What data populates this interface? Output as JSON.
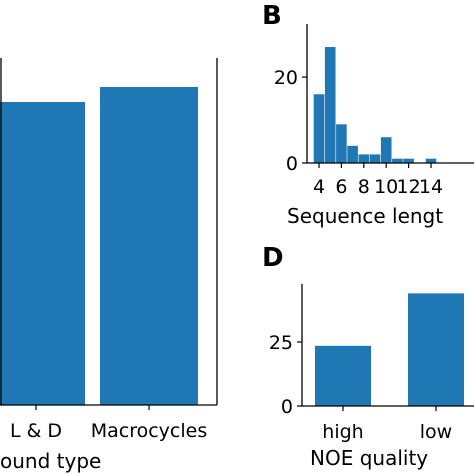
{
  "chart_data": [
    {
      "panel": "",
      "type": "bar",
      "categories": [
        "L & D",
        "Macrocycles"
      ],
      "values": [
        303,
        318
      ],
      "xlabel": "ound type",
      "ylabel": "",
      "color": "#1f77b4"
    },
    {
      "panel": "B",
      "type": "bar",
      "x": [
        4,
        5,
        6,
        7,
        8,
        9,
        10,
        11,
        12,
        13,
        14
      ],
      "values": [
        16,
        27,
        9,
        4,
        2,
        2,
        6,
        1,
        1,
        0,
        1
      ],
      "xticks": [
        "4",
        "6",
        "8",
        "10",
        "12",
        "14"
      ],
      "yticks": [
        "0",
        "20"
      ],
      "ylim": [
        0,
        28.5
      ],
      "xlabel": "Sequence lengt",
      "ylabel": "",
      "color": "#1f77b4"
    },
    {
      "panel": "D",
      "type": "bar",
      "categories": [
        "high",
        "low"
      ],
      "values": [
        23.5,
        44
      ],
      "yticks": [
        "0",
        "25"
      ],
      "ylim": [
        0,
        48
      ],
      "xlabel": "NOE quality",
      "ylabel": "",
      "color": "#1f77b4"
    }
  ]
}
